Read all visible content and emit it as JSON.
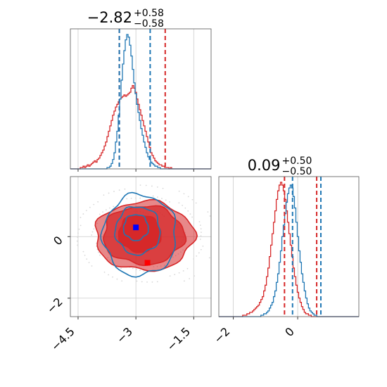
{
  "chart_data": {
    "type": "corner",
    "series": [
      {
        "name": "",
        "color": "#1f77b4"
      },
      {
        "name": "",
        "color": "#d62728"
      }
    ],
    "markers": [
      {
        "color": "#0000ff",
        "x": -3.0,
        "y": 0.3
      },
      {
        "color": "#ff0000",
        "x": -2.7,
        "y": -0.85
      }
    ],
    "panels": [
      {
        "id": "hist_p1",
        "type": "histogram",
        "title": {
          "value": "−2.82",
          "plus": "+0.58",
          "minus": "−0.58"
        },
        "xlim": [
          -4.7,
          -1.05
        ],
        "xticks": [
          -4.5,
          -3.0,
          -1.5
        ],
        "quantiles": {
          "blue": [
            -3.43,
            -2.63
          ],
          "red": [
            -3.43,
            -2.24
          ]
        },
        "blue_hist": {
          "x0": -4.7,
          "dx": 0.0365,
          "counts": [
            0,
            0,
            0,
            0,
            0,
            0,
            0,
            0,
            0,
            0,
            0,
            0,
            0,
            0,
            0,
            0,
            0,
            0,
            0,
            0,
            0,
            0,
            0,
            0,
            0,
            0,
            1,
            1,
            2,
            4,
            7,
            12,
            20,
            28,
            40,
            52,
            66,
            78,
            88,
            96,
            100,
            98,
            92,
            84,
            74,
            64,
            56,
            48,
            42,
            36,
            30,
            25,
            20,
            16,
            12,
            9,
            7,
            5,
            4,
            3,
            2,
            2,
            1,
            1,
            0,
            0,
            0,
            0,
            0,
            0,
            0,
            0,
            0,
            0,
            0,
            0,
            0,
            0,
            0,
            0,
            0,
            0,
            0,
            0,
            0,
            0,
            0,
            0,
            0,
            0,
            0,
            0,
            0,
            0,
            0,
            0,
            0,
            0,
            0,
            0
          ]
        },
        "red_hist": {
          "x0": -4.7,
          "dx": 0.0365,
          "counts": [
            0,
            0,
            0,
            0,
            0,
            0,
            0,
            1,
            1,
            2,
            1,
            2,
            3,
            2,
            3,
            4,
            5,
            6,
            5,
            7,
            8,
            10,
            12,
            14,
            17,
            20,
            24,
            28,
            32,
            36,
            40,
            43,
            46,
            48,
            50,
            52,
            53,
            54,
            55,
            54,
            55,
            56,
            57,
            60,
            62,
            60,
            57,
            52,
            48,
            44,
            40,
            36,
            32,
            28,
            24,
            20,
            16,
            12,
            10,
            8,
            6,
            5,
            4,
            3,
            3,
            2,
            2,
            1,
            1,
            1,
            0,
            1,
            0,
            0,
            0,
            0,
            0,
            0,
            0,
            0,
            0,
            0,
            0,
            0,
            0,
            0,
            0,
            0,
            0,
            0,
            0,
            0,
            0,
            0,
            0,
            0,
            0,
            0,
            0,
            0
          ]
        }
      },
      {
        "id": "hist_p2",
        "type": "histogram",
        "title": {
          "value": "0.09",
          "plus": "+0.50",
          "minus": "−0.50"
        },
        "xlim": [
          -2.45,
          1.9
        ],
        "xticks": [
          -2,
          0
        ],
        "quantiles": {
          "blue": [
            -0.16,
            0.72
          ],
          "red": [
            -0.41,
            0.59
          ]
        },
        "blue_hist": {
          "x0": -2.45,
          "dx": 0.0435,
          "counts": [
            0,
            0,
            0,
            0,
            0,
            0,
            0,
            0,
            0,
            0,
            0,
            0,
            0,
            0,
            0,
            0,
            0,
            0,
            0,
            0,
            0,
            0,
            0,
            0,
            0,
            0,
            0,
            0,
            0,
            0,
            1,
            1,
            2,
            2,
            3,
            4,
            6,
            8,
            10,
            14,
            18,
            24,
            30,
            38,
            46,
            56,
            64,
            72,
            80,
            86,
            90,
            92,
            90,
            84,
            76,
            66,
            56,
            46,
            38,
            30,
            24,
            18,
            13,
            9,
            6,
            4,
            3,
            2,
            1,
            1,
            0,
            0,
            0,
            0,
            0,
            0,
            0,
            0,
            0,
            0,
            0,
            0,
            0,
            0,
            0,
            0,
            0,
            0,
            0,
            0,
            0,
            0,
            0,
            0,
            0,
            0,
            0,
            0,
            0,
            0
          ]
        },
        "red_hist": {
          "x0": -2.45,
          "dx": 0.0435,
          "counts": [
            0,
            0,
            0,
            0,
            0,
            0,
            0,
            0,
            0,
            0,
            0,
            0,
            0,
            0,
            0,
            0,
            0,
            1,
            1,
            1,
            2,
            2,
            3,
            3,
            4,
            5,
            6,
            7,
            8,
            10,
            12,
            14,
            18,
            22,
            28,
            34,
            42,
            50,
            58,
            66,
            74,
            82,
            88,
            92,
            94,
            92,
            88,
            82,
            74,
            66,
            58,
            50,
            42,
            34,
            28,
            22,
            17,
            13,
            10,
            7,
            5,
            3,
            2,
            2,
            1,
            1,
            0,
            0,
            0,
            0,
            0,
            0,
            0,
            0,
            0,
            0,
            0,
            0,
            0,
            0,
            0,
            0,
            0,
            0,
            0,
            0,
            0,
            0,
            0,
            0,
            0,
            0,
            0,
            0,
            0,
            0,
            0,
            0,
            0,
            0
          ]
        }
      },
      {
        "id": "contour_p1_p2",
        "type": "contour2d",
        "xlim": [
          -4.7,
          -1.05
        ],
        "ylim": [
          -2.6,
          1.95
        ],
        "xticks": [
          -4.5,
          -3.0,
          -1.5
        ],
        "yticks": [
          0,
          -2
        ],
        "blue_contours": [
          {
            "cx": -3.0,
            "cy": 0.3,
            "rx": 0.32,
            "ry": 0.42
          },
          {
            "cx": -2.95,
            "cy": 0.2,
            "rx": 0.58,
            "ry": 0.78
          },
          {
            "cx": -2.9,
            "cy": 0.05,
            "rx": 0.95,
            "ry": 1.32
          }
        ],
        "red_contours": [
          {
            "cx": -2.9,
            "cy": 0.1,
            "rx": 0.55,
            "ry": 0.6
          },
          {
            "cx": -2.8,
            "cy": 0.05,
            "rx": 1.05,
            "ry": 0.95
          },
          {
            "cx": -2.78,
            "cy": 0.02,
            "rx": 1.28,
            "ry": 1.12
          }
        ]
      }
    ]
  }
}
